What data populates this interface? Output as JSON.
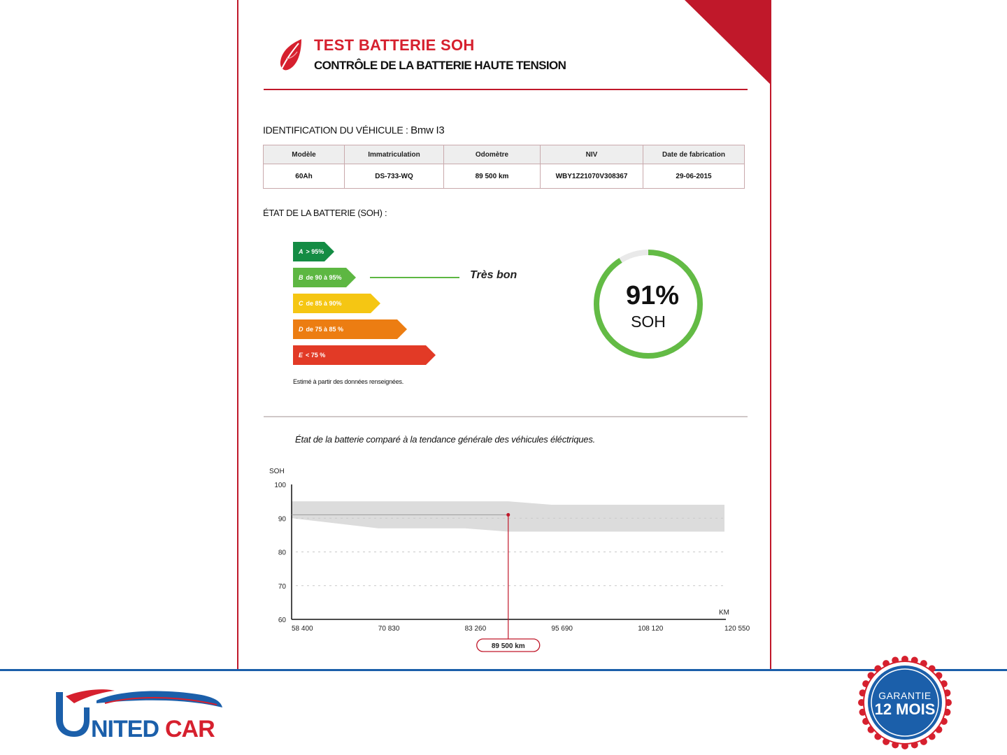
{
  "header": {
    "title": "TEST BATTERIE SOH",
    "subtitle": "CONTRÔLE DE LA BATTERIE HAUTE TENSION"
  },
  "identification": {
    "label": "IDENTIFICATION DU VÉHICULE : ",
    "vehicle": "Bmw I3"
  },
  "vehicle_table": {
    "headers": [
      "Modèle",
      "Immatriculation",
      "Odomètre",
      "NIV",
      "Date de fabrication"
    ],
    "row": [
      "60Ah",
      "DS-733-WQ",
      "89 500 km",
      "WBY1Z21070V308367",
      "29-06-2015"
    ]
  },
  "battery_state": {
    "title": "ÉTAT DE LA BATTERIE (SOH) :",
    "grades": [
      {
        "letter": "A",
        "text": "> 95%"
      },
      {
        "letter": "B",
        "text": "de 90 à 95%"
      },
      {
        "letter": "C",
        "text": "de 85 à 90%"
      },
      {
        "letter": "D",
        "text": "de 75 à 85 %"
      },
      {
        "letter": "E",
        "text": "< 75 %"
      }
    ],
    "current_grade": "B",
    "rating_label": "Très bon",
    "note": "Estimé à partir des données renseignées.",
    "soh_value": "91%",
    "soh_percent": 91,
    "soh_label": "SOH"
  },
  "comparison": {
    "title": "État de la batterie comparé à la tendance générale des véhicules éléctriques."
  },
  "chart_data": {
    "type": "area",
    "ylabel": "SOH",
    "xlabel": "KM",
    "ylim": [
      60,
      100
    ],
    "xlim": [
      58400,
      120550
    ],
    "y_ticks": [
      60,
      70,
      80,
      90,
      100
    ],
    "x_ticks": [
      "58 400",
      "70 830",
      "83 260",
      "95 690",
      "108 120",
      "120 550"
    ],
    "band": {
      "x": [
        58400,
        70830,
        83260,
        89500,
        95690,
        108120,
        120550
      ],
      "upper": [
        95,
        95,
        95,
        95,
        94,
        94,
        94
      ],
      "lower": [
        90,
        87,
        87,
        86,
        86,
        86,
        86
      ]
    },
    "point": {
      "x": 89500,
      "y": 91
    },
    "marker_label": "89 500 km",
    "colors": {
      "band": "#dcdcdc",
      "marker": "#c0182a"
    }
  },
  "footer": {
    "brand": "UNITEDCAR",
    "badge_top": "GARANTIE",
    "badge_bottom": "12 MOIS"
  }
}
